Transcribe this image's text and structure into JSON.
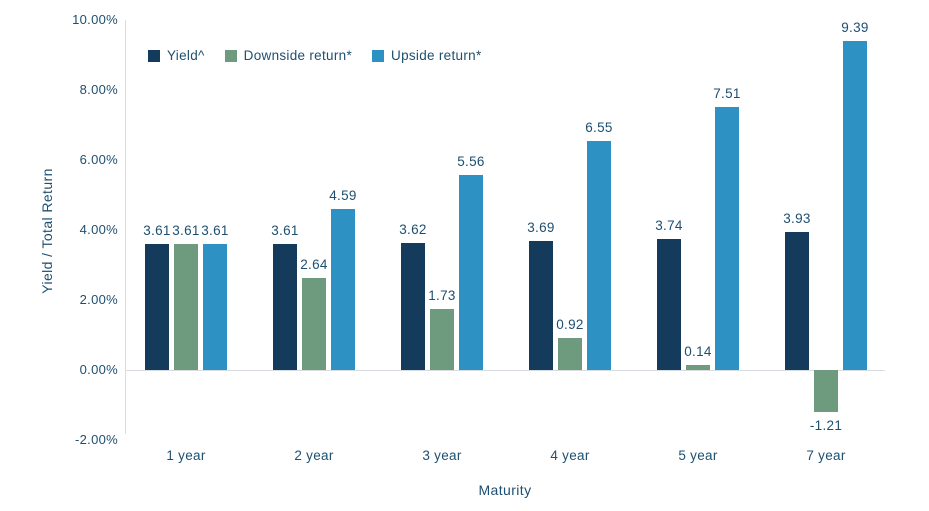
{
  "chart_data": {
    "type": "bar",
    "title": "",
    "xlabel": "Maturity",
    "ylabel": "Yield / Total Return",
    "categories": [
      "1 year",
      "2 year",
      "3 year",
      "4 year",
      "5 year",
      "7 year"
    ],
    "series": [
      {
        "name": "Yield^",
        "color": "#143A5C",
        "values": [
          3.61,
          3.61,
          3.62,
          3.69,
          3.74,
          3.93
        ]
      },
      {
        "name": "Downside return*",
        "color": "#6E9B7E",
        "values": [
          3.61,
          2.64,
          1.73,
          0.92,
          0.14,
          -1.21
        ]
      },
      {
        "name": "Upside return*",
        "color": "#2E91C4",
        "values": [
          3.61,
          4.59,
          5.56,
          6.55,
          7.51,
          9.39
        ]
      }
    ],
    "y_tick_values": [
      10,
      8,
      6,
      4,
      2,
      0,
      -2
    ],
    "y_tick_format": "percent_2dp",
    "ylim": [
      -2,
      10
    ],
    "grid": false,
    "legend_position": "top-left",
    "data_labels": true
  },
  "colors": {
    "axis_line": "#D9DDE2",
    "text": "#1E4F70",
    "background": "#FFFFFF"
  }
}
